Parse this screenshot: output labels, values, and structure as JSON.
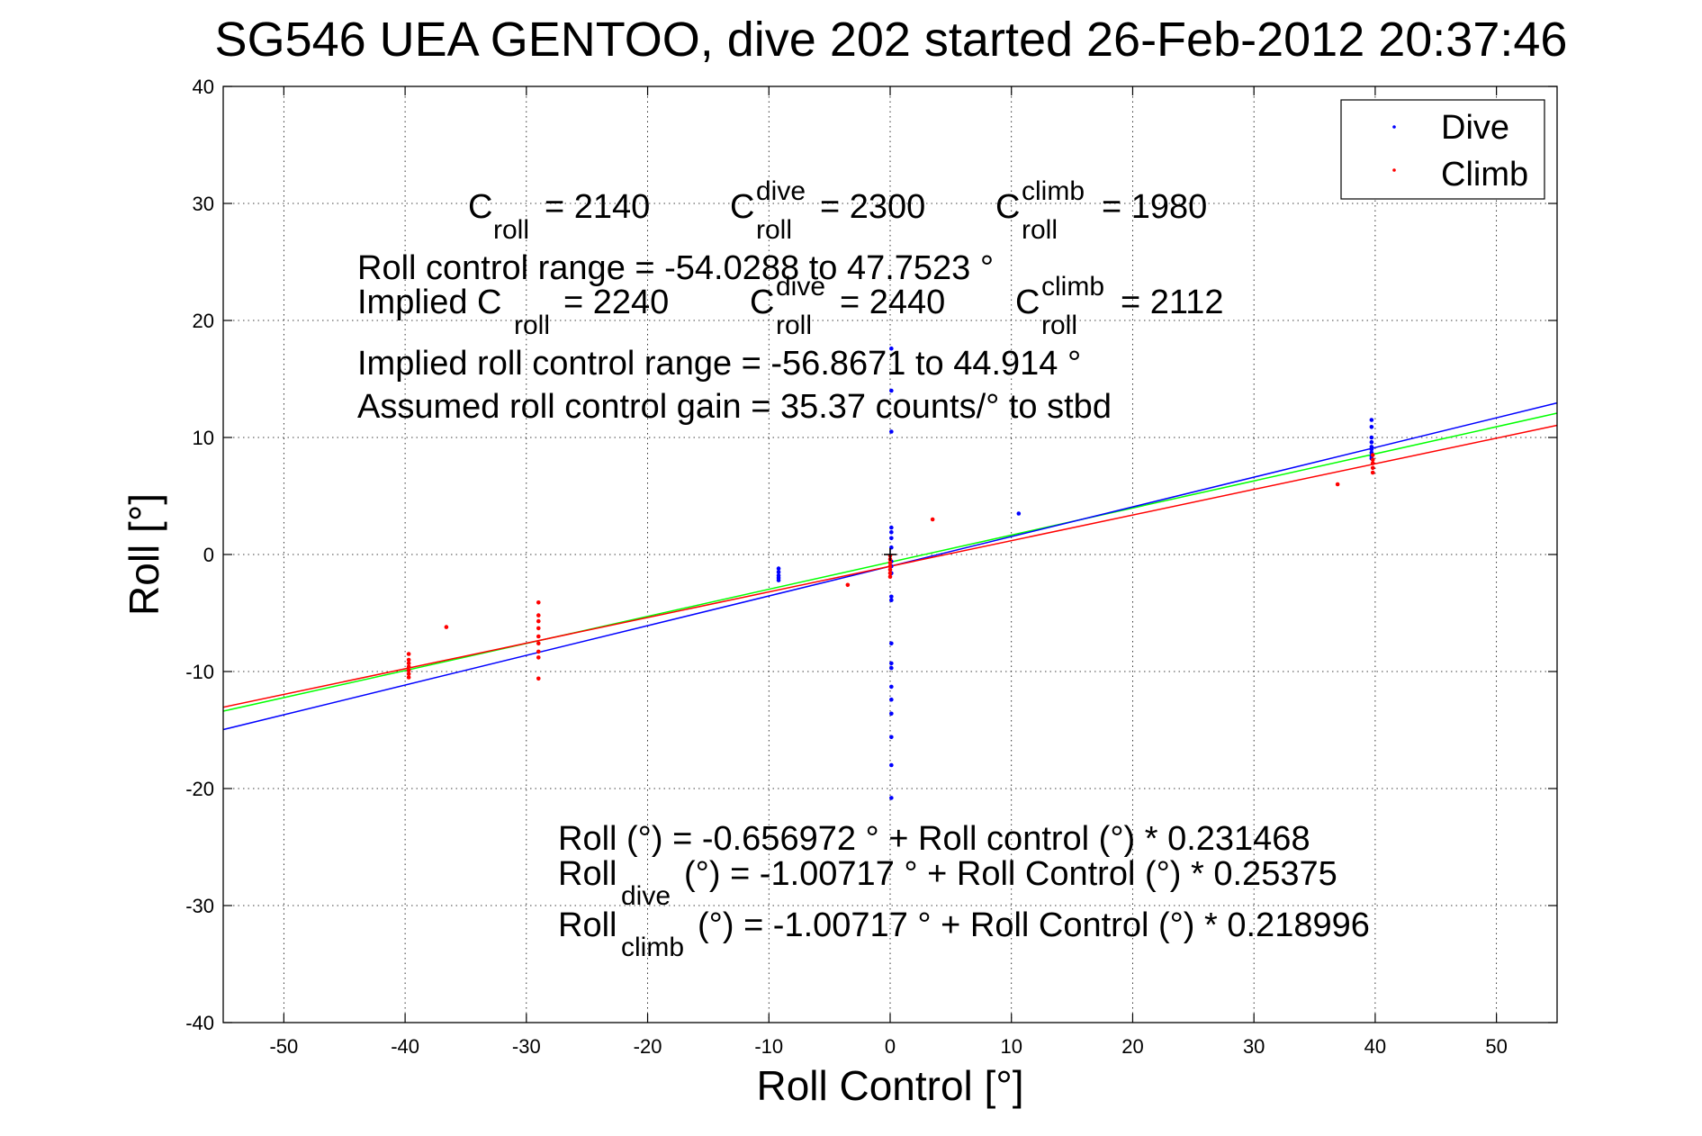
{
  "chart_data": {
    "type": "scatter",
    "title": "SG546 UEA GENTOO, dive 202 started 26-Feb-2012 20:37:46",
    "xlabel": "Roll Control [°]",
    "ylabel": "Roll [°]",
    "xlim": [
      -55,
      55
    ],
    "ylim": [
      -40,
      40
    ],
    "xticks": [
      -50,
      -40,
      -30,
      -20,
      -10,
      0,
      10,
      20,
      30,
      40,
      50
    ],
    "yticks": [
      -40,
      -30,
      -20,
      -10,
      0,
      10,
      20,
      30,
      40
    ],
    "grid": true,
    "legend_position": "top-right",
    "colors": {
      "dive": "#0000ff",
      "climb": "#ff0000",
      "combined_fit": "#00ff00",
      "zero_marker": "#000000"
    },
    "series": [
      {
        "name": "Dive",
        "color": "#0000ff",
        "points": [
          [
            -9.2,
            -1.2
          ],
          [
            -9.2,
            -1.5
          ],
          [
            -9.2,
            -1.8
          ],
          [
            -9.2,
            -2.0
          ],
          [
            -9.2,
            -2.2
          ],
          [
            0.1,
            17.6
          ],
          [
            0.1,
            14.0
          ],
          [
            0.1,
            10.5
          ],
          [
            0.1,
            2.3
          ],
          [
            0.1,
            1.9
          ],
          [
            0.1,
            1.4
          ],
          [
            0.1,
            0.6
          ],
          [
            0.1,
            -0.6
          ],
          [
            0.1,
            -1.0
          ],
          [
            0.1,
            -1.6
          ],
          [
            0.1,
            -3.6
          ],
          [
            0.1,
            -3.9
          ],
          [
            0.1,
            -7.6
          ],
          [
            0.1,
            -9.3
          ],
          [
            0.1,
            -9.7
          ],
          [
            0.1,
            -11.3
          ],
          [
            0.1,
            -12.4
          ],
          [
            0.1,
            -13.6
          ],
          [
            0.1,
            -15.6
          ],
          [
            0.1,
            -18.0
          ],
          [
            0.1,
            -20.8
          ],
          [
            10.6,
            3.5
          ],
          [
            39.7,
            11.5
          ],
          [
            39.7,
            10.9
          ],
          [
            39.7,
            10.0
          ],
          [
            39.7,
            9.6
          ],
          [
            39.7,
            9.2
          ],
          [
            39.7,
            9.0
          ],
          [
            39.7,
            8.7
          ],
          [
            39.7,
            8.4
          ],
          [
            39.7,
            8.2
          ]
        ]
      },
      {
        "name": "Climb",
        "color": "#ff0000",
        "points": [
          [
            -39.7,
            -8.5
          ],
          [
            -39.7,
            -9.0
          ],
          [
            -39.7,
            -9.3
          ],
          [
            -39.7,
            -9.6
          ],
          [
            -39.7,
            -9.9
          ],
          [
            -39.7,
            -10.2
          ],
          [
            -39.7,
            -10.5
          ],
          [
            -36.6,
            -6.2
          ],
          [
            -29.0,
            -4.1
          ],
          [
            -29.0,
            -5.2
          ],
          [
            -29.0,
            -5.7
          ],
          [
            -29.0,
            -6.3
          ],
          [
            -29.0,
            -7.0
          ],
          [
            -29.0,
            -7.6
          ],
          [
            -29.0,
            -8.3
          ],
          [
            -29.0,
            -8.8
          ],
          [
            -29.0,
            -10.6
          ],
          [
            -3.5,
            -2.6
          ],
          [
            0.0,
            -0.1
          ],
          [
            0.0,
            -0.4
          ],
          [
            0.0,
            -0.7
          ],
          [
            0.0,
            -1.0
          ],
          [
            0.0,
            -1.3
          ],
          [
            0.0,
            -1.6
          ],
          [
            0.0,
            -1.9
          ],
          [
            3.5,
            3.0
          ],
          [
            36.9,
            6.0
          ],
          [
            39.8,
            7.0
          ],
          [
            39.8,
            7.4
          ],
          [
            39.8,
            7.8
          ],
          [
            39.8,
            8.1
          ],
          [
            39.8,
            8.5
          ]
        ]
      }
    ],
    "fit_lines": [
      {
        "name": "combined",
        "color": "#00ff00",
        "intercept": -0.656972,
        "slope": 0.231468
      },
      {
        "name": "dive",
        "color": "#0000ff",
        "intercept": -1.00717,
        "slope": 0.25375
      },
      {
        "name": "climb",
        "color": "#ff0000",
        "intercept": -1.00717,
        "slope": 0.218996
      }
    ],
    "zero_marker": [
      0,
      0
    ],
    "annotations": {
      "c_roll_label": "C",
      "c_roll_sub": "roll",
      "c_roll_value": "= 2140",
      "c_dive_sup": "dive",
      "c_dive_value": "= 2300",
      "c_climb_sup": "climb",
      "c_climb_value": "= 1980",
      "roll_range": "Roll control range = -54.0288 to 47.7523 °",
      "implied_prefix": "Implied C",
      "implied_c_roll_value": "= 2240",
      "implied_c_dive_value": "= 2440",
      "implied_c_climb_value": "= 2112",
      "implied_range": "Implied roll control range = -56.8671 to 44.914 °",
      "gain": "Assumed roll control gain = 35.37 counts/° to stbd",
      "eq_all": "Roll (°) = -0.656972 ° + Roll control (°) * 0.231468",
      "eq_dive_prefix": "Roll",
      "eq_dive_sub": "dive",
      "eq_dive_rest": "(°) = -1.00717 ° + Roll Control (°) * 0.25375",
      "eq_climb_prefix": "Roll",
      "eq_climb_sub": "climb",
      "eq_climb_rest": "(°) = -1.00717 ° + Roll Control (°) * 0.218996"
    }
  }
}
